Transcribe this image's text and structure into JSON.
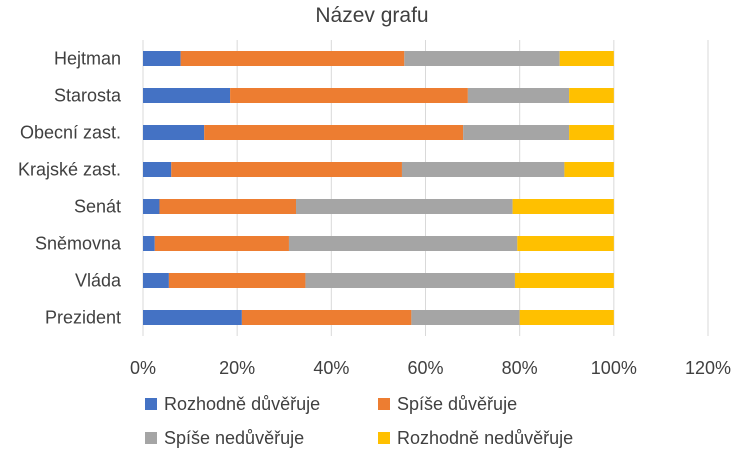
{
  "chart_data": {
    "type": "bar",
    "orientation": "horizontal",
    "stacked": "percent",
    "title": "Název grafu",
    "categories": [
      "Hejtman",
      "Starosta",
      "Obecní zast.",
      "Krajské zast.",
      "Senát",
      "Sněmovna",
      "Vláda",
      "Prezident"
    ],
    "series": [
      {
        "name": "Rozhodně důvěřuje",
        "color": "#4472c4",
        "values": [
          8,
          18.5,
          13,
          6,
          3.5,
          2.5,
          5.5,
          21
        ]
      },
      {
        "name": "Spíše důvěřuje",
        "color": "#ed7d31",
        "values": [
          47.5,
          50.5,
          55,
          49,
          29,
          28.5,
          29,
          36
        ]
      },
      {
        "name": "Spíše nedůvěřuje",
        "color": "#a5a5a5",
        "values": [
          33,
          21.5,
          22.5,
          34.5,
          46,
          48.5,
          44.5,
          23
        ]
      },
      {
        "name": "Rozhodně nedůvěřuje",
        "color": "#ffc000",
        "values": [
          11.5,
          9.5,
          9.5,
          10.5,
          21.5,
          20.5,
          21,
          20
        ]
      }
    ],
    "xaxis": {
      "min": 0,
      "max": 120,
      "ticks": [
        0,
        20,
        40,
        60,
        80,
        100,
        120
      ],
      "tick_suffix": "%"
    },
    "grid": true,
    "legend_position": "bottom"
  }
}
